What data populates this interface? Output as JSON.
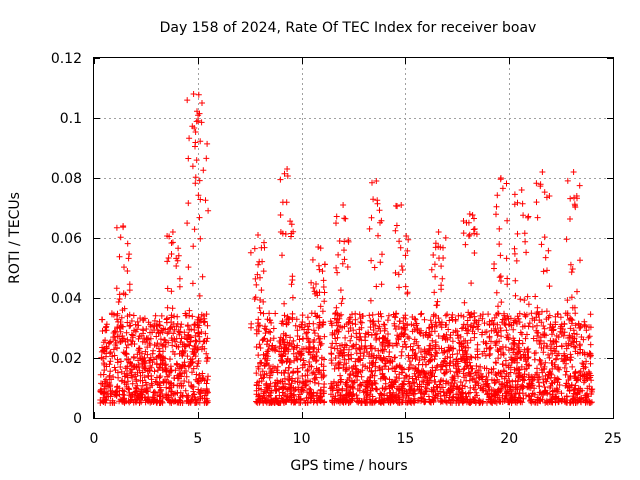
{
  "chart_data": {
    "type": "scatter",
    "title": "Day 158 of 2024, Rate Of TEC Index for receiver boav",
    "xlabel": "GPS time / hours",
    "ylabel": "ROTI / TECUs",
    "xlim": [
      0,
      25
    ],
    "ylim": [
      0,
      0.12
    ],
    "xticks": [
      0,
      5,
      10,
      15,
      20,
      25
    ],
    "yticks": [
      0,
      0.02,
      0.04,
      0.06,
      0.08,
      0.1,
      0.12
    ],
    "ytick_labels": [
      "0",
      "0.02",
      "0.04",
      "0.06",
      "0.08",
      "0.1",
      "0.12"
    ],
    "grid": true,
    "marker": "+",
    "series": [
      {
        "name": "ROTI",
        "color": "#ff0000",
        "segments": [
          {
            "x_start": 0.3,
            "x_end": 5.5,
            "typical_range": [
              0.005,
              0.035
            ]
          },
          {
            "x_start": 7.8,
            "x_end": 11.1,
            "typical_range": [
              0.005,
              0.035
            ]
          },
          {
            "x_start": 11.4,
            "x_end": 24.0,
            "typical_range": [
              0.005,
              0.035
            ]
          }
        ],
        "peaks": [
          {
            "x": 1.4,
            "y": 0.064
          },
          {
            "x": 3.8,
            "y": 0.062
          },
          {
            "x": 4.8,
            "y": 0.108
          },
          {
            "x": 5.2,
            "y": 0.105
          },
          {
            "x": 7.9,
            "y": 0.061
          },
          {
            "x": 9.3,
            "y": 0.083
          },
          {
            "x": 10.8,
            "y": 0.057
          },
          {
            "x": 12.0,
            "y": 0.071
          },
          {
            "x": 13.6,
            "y": 0.079
          },
          {
            "x": 14.8,
            "y": 0.071
          },
          {
            "x": 16.6,
            "y": 0.062
          },
          {
            "x": 18.1,
            "y": 0.068
          },
          {
            "x": 19.6,
            "y": 0.08
          },
          {
            "x": 20.6,
            "y": 0.076
          },
          {
            "x": 21.6,
            "y": 0.082
          },
          {
            "x": 23.1,
            "y": 0.082
          }
        ]
      }
    ]
  }
}
